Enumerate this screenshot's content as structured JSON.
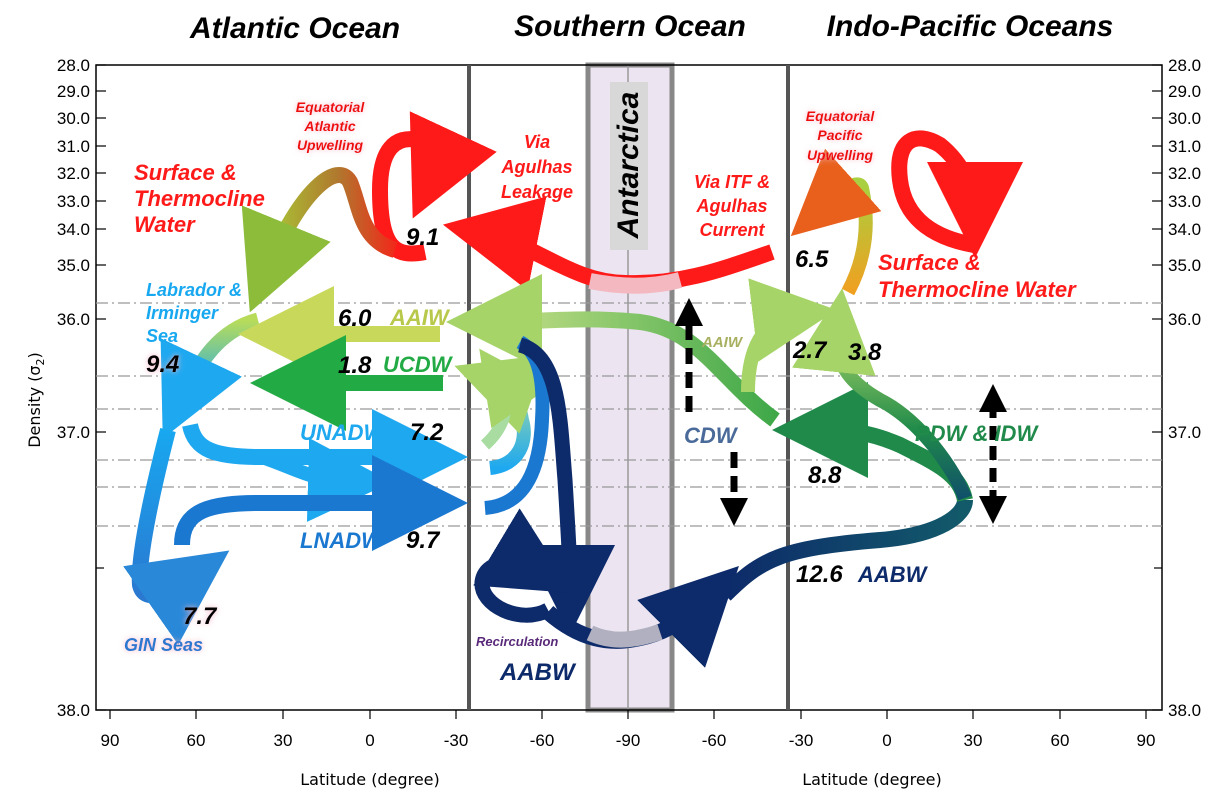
{
  "titles": {
    "atlantic": "Atlantic Ocean",
    "southern": "Southern Ocean",
    "indopacific": "Indo-Pacific Oceans"
  },
  "axes": {
    "ylabel_main": "Density (σ",
    "ylabel_sub": "2",
    "ylabel_end": ")",
    "xlabel_left": "Latitude (degree)",
    "xlabel_right": "Latitude (degree)",
    "y_ticks": [
      "28.0",
      "29.0",
      "30.0",
      "31.0",
      "32.0",
      "33.0",
      "34.0",
      "35.0",
      "36.0",
      "37.0",
      "38.0"
    ],
    "x_ticks": [
      "90",
      "60",
      "30",
      "0",
      "-30",
      "-60",
      "-90",
      "-60",
      "-30",
      "0",
      "30",
      "60",
      "90"
    ]
  },
  "labels": {
    "antarctica": "Antarctica",
    "eq_atl_1": "Equatorial",
    "eq_atl_2": "Atlantic",
    "eq_atl_3": "Upwelling",
    "eq_pac_1": "Equatorial",
    "eq_pac_2": "Pacific",
    "eq_pac_3": "Upwelling",
    "stw_atl_1": "Surface &",
    "stw_atl_2": "Thermocline",
    "stw_atl_3": "Water",
    "agulhas_1": "Via",
    "agulhas_2": "Agulhas",
    "agulhas_3": "Leakage",
    "itf_1": "Via ITF &",
    "itf_2": "Agulhas",
    "itf_3": "Current",
    "stw_pac_1": "Surface &",
    "stw_pac_2": "Thermocline Water",
    "lab_1": "Labrador &",
    "lab_2": "Irminger",
    "lab_3": "Sea",
    "aaiw_atl": "AAIW",
    "ucdw": "UCDW",
    "unadw": "UNADW",
    "lnadw": "LNADW",
    "aaiw_so": "AAIW",
    "cdw": "CDW",
    "pdw_idw": "PDW & IDW",
    "aabw_pac": "AABW",
    "aabw_so": "AABW",
    "recirculation": "Recirculation",
    "gin": "GIN Seas"
  },
  "values": {
    "v91": "9.1",
    "v94": "9.4",
    "v60": "6.0",
    "v18": "1.8",
    "v72": "7.2",
    "v97": "9.7",
    "v77": "7.7",
    "v65": "6.5",
    "v27": "2.7",
    "v38": "3.8",
    "v88": "8.8",
    "v126": "12.6"
  },
  "colors": {
    "surface_red": "#ff1a1a",
    "aaiw_yellowgreen": "#c8d85a",
    "ucdw_green": "#22aa44",
    "nadw_blue": "#1ea8f0",
    "lnadw_blue": "#1a78d0",
    "aabw_navy": "#0d2a6a",
    "pdw_green": "#1f8a4a",
    "antarctica_fill": "#ece4f0"
  }
}
